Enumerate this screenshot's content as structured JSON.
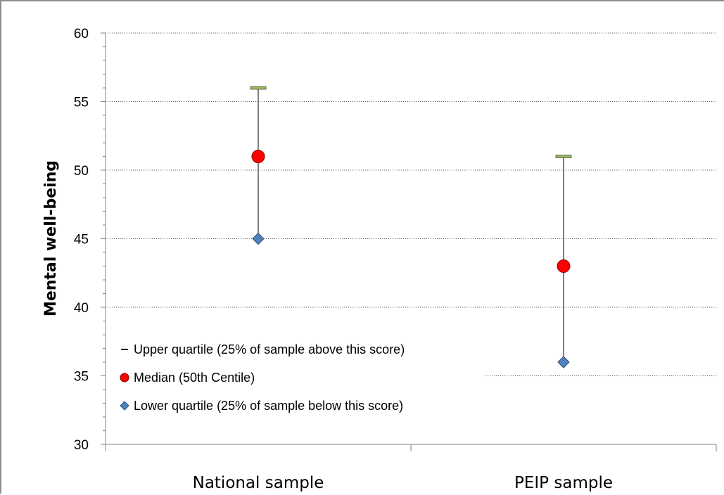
{
  "chart_data": {
    "type": "scatter",
    "title": "",
    "xlabel": "",
    "ylabel": "Mental well-being",
    "ylim": [
      30,
      60
    ],
    "y_major_step": 5,
    "y_minor_step": 1,
    "grid": "major horizontal, dotted",
    "legend_position": "bottom-left inside plot",
    "categories": [
      "National sample",
      "PEIP sample"
    ],
    "series": [
      {
        "name": "Upper quartile (25% of sample above this score)",
        "marker": "dash",
        "color": "#9bbb59",
        "values": [
          56,
          51
        ]
      },
      {
        "name": "Median (50th Centile)",
        "marker": "circle",
        "color": "#ff0000",
        "values": [
          51,
          43
        ]
      },
      {
        "name": "Lower quartile (25% of sample below this score)",
        "marker": "diamond",
        "color": "#4f81bd",
        "values": [
          45,
          36
        ]
      }
    ]
  }
}
